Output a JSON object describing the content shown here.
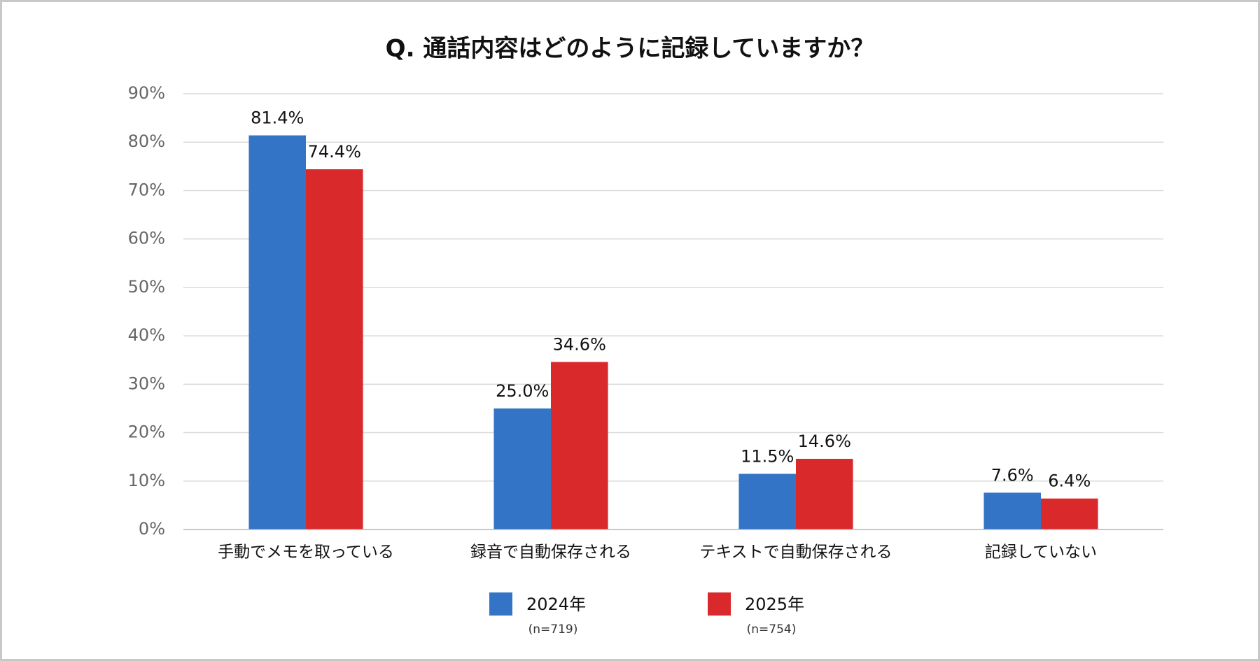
{
  "chart_data": {
    "type": "bar",
    "title": "Q. 通話内容はどのように記録していますか？",
    "categories": [
      "手動でメモを取っている",
      "録音で自動保存される",
      "テキストで自動保存される",
      "記録していない"
    ],
    "series": [
      {
        "name": "2024年",
        "note": "(n=719)",
        "color": "#3374c6",
        "values": [
          81.4,
          25.0,
          11.5,
          7.6
        ],
        "value_labels": [
          "81.4%",
          "25.0%",
          "11.5%",
          "7.6%"
        ]
      },
      {
        "name": "2025年",
        "note": "(n=754)",
        "color": "#d9292b",
        "values": [
          74.4,
          34.6,
          14.6,
          6.4
        ],
        "value_labels": [
          "74.4%",
          "34.6%",
          "14.6%",
          "6.4%"
        ]
      }
    ],
    "ylim": [
      0,
      90
    ],
    "yticks": [
      {
        "value": 0,
        "label": "0%"
      },
      {
        "value": 10,
        "label": "10%"
      },
      {
        "value": 20,
        "label": "20%"
      },
      {
        "value": 30,
        "label": "30%"
      },
      {
        "value": 40,
        "label": "40%"
      },
      {
        "value": 50,
        "label": "50%"
      },
      {
        "value": 60,
        "label": "60%"
      },
      {
        "value": 70,
        "label": "70%"
      },
      {
        "value": 80,
        "label": "80%"
      },
      {
        "value": 90,
        "label": "90%"
      }
    ],
    "grid": true,
    "legend": "bottom"
  }
}
